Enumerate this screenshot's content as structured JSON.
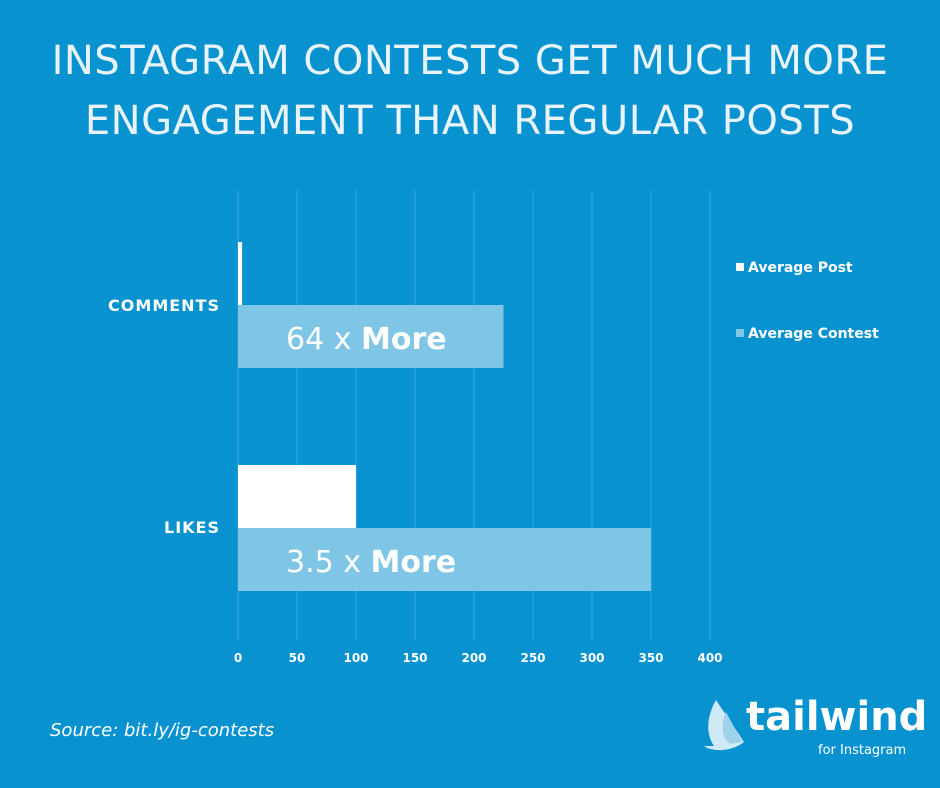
{
  "title_lines": [
    "INSTAGRAM CONTESTS GET MUCH MORE",
    "ENGAGEMENT THAN REGULAR POSTS"
  ],
  "colors": {
    "background": "#0892d0",
    "average_post": "#ffffff",
    "average_contest": "#7fc6e6",
    "grid": "#3aa8da"
  },
  "chart_data": {
    "type": "bar",
    "orientation": "horizontal",
    "categories": [
      "COMMENTS",
      "LIKES"
    ],
    "series": [
      {
        "name": "Average Post",
        "values": [
          3.5,
          100
        ],
        "color": "#ffffff"
      },
      {
        "name": "Average Contest",
        "values": [
          225,
          350
        ],
        "color": "#7fc6e6"
      }
    ],
    "bar_labels": [
      "64 x More",
      "3.5 x More"
    ],
    "xlim": [
      0,
      400
    ],
    "xticks": [
      "0",
      "50",
      "100",
      "150",
      "200",
      "250",
      "300",
      "350",
      "400"
    ],
    "grid": true,
    "legend": "right"
  },
  "source": "Source: bit.ly/ig-contests",
  "logo": {
    "word": "tailwind",
    "sub": "for Instagram"
  }
}
